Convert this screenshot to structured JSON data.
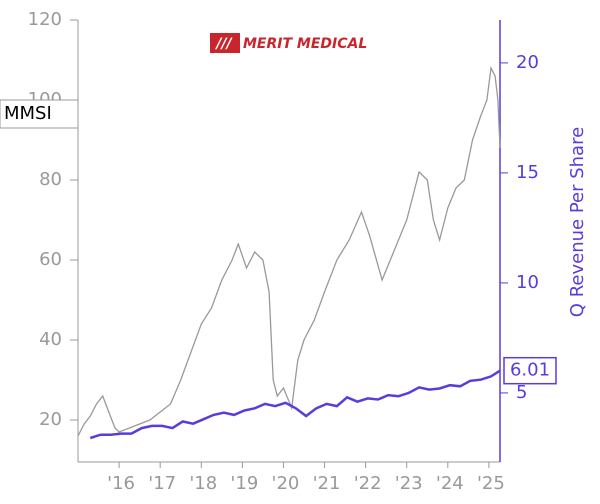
{
  "chart_data": {
    "type": "line",
    "ticker": "MMSI",
    "logo": "MERIT MEDICAL",
    "y2_label": "Q Revenue Per Share",
    "xlim": [
      2015,
      2025.27
    ],
    "xticks": [
      {
        "value": 2016,
        "label": "'16"
      },
      {
        "value": 2017,
        "label": "'17"
      },
      {
        "value": 2018,
        "label": "'18"
      },
      {
        "value": 2019,
        "label": "'19"
      },
      {
        "value": 2020,
        "label": "'20"
      },
      {
        "value": 2021,
        "label": "'21"
      },
      {
        "value": 2022,
        "label": "'22"
      },
      {
        "value": 2023,
        "label": "'23"
      },
      {
        "value": 2024,
        "label": "'24"
      },
      {
        "value": 2025,
        "label": "'25"
      }
    ],
    "ylim": [
      9.5,
      120
    ],
    "yticks": [
      20,
      40,
      60,
      80,
      100,
      120
    ],
    "y2lim": [
      1.86,
      21.95
    ],
    "y2ticks": [
      5,
      10,
      15,
      20
    ],
    "series": [
      {
        "name": "MMSI",
        "color": "#999999",
        "axis": "y",
        "x": [
          2015.0,
          2015.15,
          2015.3,
          2015.45,
          2015.6,
          2015.75,
          2015.9,
          2016.0,
          2016.25,
          2016.5,
          2016.75,
          2017.0,
          2017.25,
          2017.5,
          2017.75,
          2018.0,
          2018.25,
          2018.5,
          2018.75,
          2018.9,
          2019.1,
          2019.3,
          2019.5,
          2019.65,
          2019.75,
          2019.85,
          2020.0,
          2020.2,
          2020.35,
          2020.5,
          2020.75,
          2021.0,
          2021.3,
          2021.6,
          2021.9,
          2022.1,
          2022.4,
          2022.6,
          2022.8,
          2023.0,
          2023.3,
          2023.5,
          2023.65,
          2023.8,
          2024.0,
          2024.2,
          2024.4,
          2024.6,
          2024.8,
          2024.95,
          2025.05,
          2025.15,
          2025.22,
          2025.27
        ],
        "values": [
          16,
          19,
          21,
          24,
          26,
          22,
          18,
          17,
          18,
          19,
          20,
          22,
          24,
          30,
          37,
          44,
          48,
          55,
          60,
          64,
          58,
          62,
          60,
          52,
          30,
          26,
          28,
          23,
          35,
          40,
          45,
          52,
          60,
          65,
          72,
          66,
          55,
          60,
          65,
          70,
          82,
          80,
          70,
          65,
          73,
          78,
          80,
          90,
          96,
          100,
          108,
          106,
          100,
          88
        ]
      },
      {
        "name": "Q Revenue Per Share",
        "color": "#5b3bdb",
        "axis": "y2",
        "x": [
          2015.3,
          2015.55,
          2015.8,
          2016.05,
          2016.3,
          2016.55,
          2016.8,
          2017.05,
          2017.3,
          2017.55,
          2017.8,
          2018.05,
          2018.3,
          2018.55,
          2018.8,
          2019.05,
          2019.3,
          2019.55,
          2019.8,
          2020.05,
          2020.3,
          2020.55,
          2020.8,
          2021.05,
          2021.3,
          2021.55,
          2021.8,
          2022.05,
          2022.3,
          2022.55,
          2022.8,
          2023.05,
          2023.3,
          2023.55,
          2023.8,
          2024.05,
          2024.3,
          2024.55,
          2024.8,
          2025.05,
          2025.27
        ],
        "values": [
          2.95,
          3.1,
          3.1,
          3.15,
          3.15,
          3.4,
          3.5,
          3.5,
          3.4,
          3.7,
          3.6,
          3.8,
          4.0,
          4.1,
          4.0,
          4.2,
          4.3,
          4.5,
          4.4,
          4.55,
          4.3,
          3.95,
          4.3,
          4.5,
          4.4,
          4.8,
          4.6,
          4.75,
          4.7,
          4.9,
          4.85,
          5.0,
          5.25,
          5.15,
          5.2,
          5.35,
          5.3,
          5.55,
          5.6,
          5.75,
          6.01
        ]
      }
    ]
  }
}
